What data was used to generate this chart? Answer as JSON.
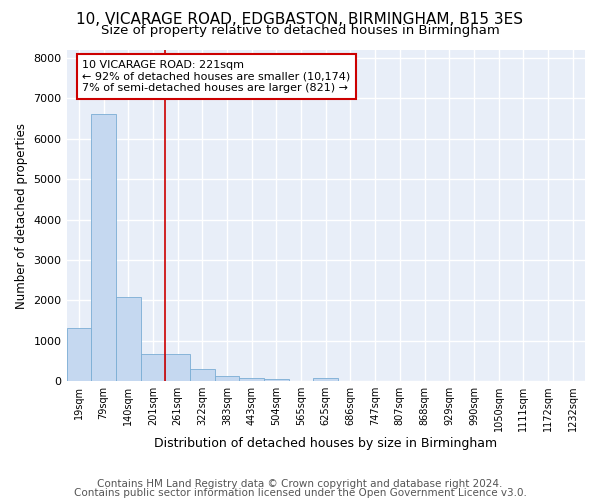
{
  "title": "10, VICARAGE ROAD, EDGBASTON, BIRMINGHAM, B15 3ES",
  "subtitle": "Size of property relative to detached houses in Birmingham",
  "xlabel": "Distribution of detached houses by size in Birmingham",
  "ylabel": "Number of detached properties",
  "bar_color": "#c5d8f0",
  "bar_edge_color": "#7aadd4",
  "background_color": "#e8eef8",
  "grid_color": "#ffffff",
  "categories": [
    "19sqm",
    "79sqm",
    "140sqm",
    "201sqm",
    "261sqm",
    "322sqm",
    "383sqm",
    "443sqm",
    "504sqm",
    "565sqm",
    "625sqm",
    "686sqm",
    "747sqm",
    "807sqm",
    "868sqm",
    "929sqm",
    "990sqm",
    "1050sqm",
    "1111sqm",
    "1172sqm",
    "1232sqm"
  ],
  "values": [
    1310,
    6610,
    2090,
    660,
    660,
    290,
    125,
    75,
    55,
    0,
    80,
    0,
    0,
    0,
    0,
    0,
    0,
    0,
    0,
    0,
    0
  ],
  "ylim": [
    0,
    8200
  ],
  "yticks": [
    0,
    1000,
    2000,
    3000,
    4000,
    5000,
    6000,
    7000,
    8000
  ],
  "red_line_x": 3.5,
  "annotation_text": "10 VICARAGE ROAD: 221sqm\n← 92% of detached houses are smaller (10,174)\n7% of semi-detached houses are larger (821) →",
  "annotation_box_color": "#cc0000",
  "footer_line1": "Contains HM Land Registry data © Crown copyright and database right 2024.",
  "footer_line2": "Contains public sector information licensed under the Open Government Licence v3.0.",
  "title_fontsize": 11,
  "subtitle_fontsize": 9.5,
  "footer_fontsize": 7.5
}
